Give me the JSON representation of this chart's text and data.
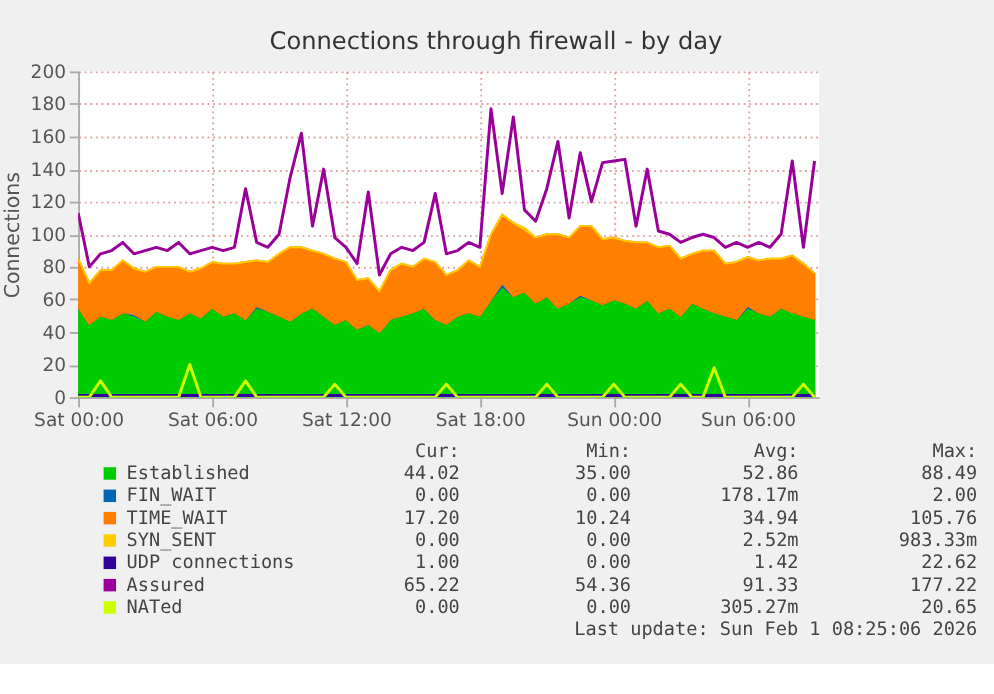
{
  "chart_data": {
    "type": "area",
    "title": "Connections through firewall - by day",
    "ylabel": "Connections",
    "stacked": true,
    "grid": true,
    "legend": "bottom",
    "marker": "none",
    "x": [
      "2026-01-31T00:00",
      "2026-01-31T00:30",
      "2026-01-31T01:00",
      "2026-01-31T01:30",
      "2026-01-31T02:00",
      "2026-01-31T02:30",
      "2026-01-31T03:00",
      "2026-01-31T03:30",
      "2026-01-31T04:00",
      "2026-01-31T04:30",
      "2026-01-31T05:00",
      "2026-01-31T05:30",
      "2026-01-31T06:00",
      "2026-01-31T06:30",
      "2026-01-31T07:00",
      "2026-01-31T07:30",
      "2026-01-31T08:00",
      "2026-01-31T08:30",
      "2026-01-31T09:00",
      "2026-01-31T09:30",
      "2026-01-31T10:00",
      "2026-01-31T10:30",
      "2026-01-31T11:00",
      "2026-01-31T11:30",
      "2026-01-31T12:00",
      "2026-01-31T12:30",
      "2026-01-31T13:00",
      "2026-01-31T13:30",
      "2026-01-31T14:00",
      "2026-01-31T14:30",
      "2026-01-31T15:00",
      "2026-01-31T15:30",
      "2026-01-31T16:00",
      "2026-01-31T16:30",
      "2026-01-31T17:00",
      "2026-01-31T17:30",
      "2026-01-31T18:00",
      "2026-01-31T18:30",
      "2026-01-31T19:00",
      "2026-01-31T19:30",
      "2026-01-31T20:00",
      "2026-01-31T20:30",
      "2026-01-31T21:00",
      "2026-01-31T21:30",
      "2026-01-31T22:00",
      "2026-01-31T22:30",
      "2026-01-31T23:00",
      "2026-01-31T23:30",
      "2026-02-01T00:00",
      "2026-02-01T00:30",
      "2026-02-01T01:00",
      "2026-02-01T01:30",
      "2026-02-01T02:00",
      "2026-02-01T02:30",
      "2026-02-01T03:00",
      "2026-02-01T03:30",
      "2026-02-01T04:00",
      "2026-02-01T04:30",
      "2026-02-01T05:00",
      "2026-02-01T05:30",
      "2026-02-01T06:00",
      "2026-02-01T06:30",
      "2026-02-01T07:00",
      "2026-02-01T07:30",
      "2026-02-01T08:00",
      "2026-02-01T08:30",
      "2026-02-01T09:00"
    ],
    "xlim": [
      "2026-01-31T00:00",
      "2026-02-01T09:12"
    ],
    "xticks": [
      {
        "value": "2026-01-31T00:00",
        "label": "Sat 00:00"
      },
      {
        "value": "2026-01-31T06:00",
        "label": "Sat 06:00"
      },
      {
        "value": "2026-01-31T12:00",
        "label": "Sat 12:00"
      },
      {
        "value": "2026-01-31T18:00",
        "label": "Sat 18:00"
      },
      {
        "value": "2026-02-01T00:00",
        "label": "Sun 00:00"
      },
      {
        "value": "2026-02-01T06:00",
        "label": "Sun 06:00"
      }
    ],
    "ylim": [
      0,
      200
    ],
    "yticks": [
      0,
      20,
      40,
      60,
      80,
      100,
      120,
      140,
      160,
      180,
      200
    ],
    "series": [
      {
        "name": "Established",
        "color": "#00cc00",
        "values": [
          55,
          45,
          50,
          48,
          52,
          50,
          47,
          53,
          50,
          48,
          52,
          49,
          55,
          50,
          52,
          48,
          55,
          53,
          50,
          47,
          52,
          55,
          50,
          45,
          48,
          42,
          45,
          40,
          48,
          50,
          52,
          55,
          48,
          45,
          50,
          52,
          50,
          60,
          68,
          62,
          65,
          58,
          62,
          55,
          58,
          62,
          60,
          57,
          60,
          58,
          55,
          60,
          52,
          55,
          50,
          58,
          55,
          52,
          50,
          48,
          55,
          52,
          50,
          55,
          52,
          50,
          48
        ]
      },
      {
        "name": "FIN_WAIT",
        "color": "#0066b3",
        "values": [
          0,
          0,
          0,
          0,
          0,
          1,
          0,
          0,
          0,
          0,
          0,
          0,
          0,
          0,
          0,
          0,
          1,
          0,
          0,
          0,
          0,
          0,
          0,
          0,
          0,
          0,
          0,
          0,
          0,
          0,
          0,
          0,
          0,
          0,
          0,
          0,
          0,
          0,
          2,
          0,
          0,
          0,
          0,
          0,
          0,
          1,
          0,
          0,
          0,
          0,
          0,
          0,
          0,
          0,
          0,
          0,
          0,
          0,
          0,
          0,
          1,
          0,
          0,
          0,
          0,
          0,
          0
        ]
      },
      {
        "name": "TIME_WAIT",
        "color": "#ff8000",
        "values": [
          30,
          25,
          28,
          30,
          32,
          28,
          30,
          27,
          30,
          32,
          25,
          30,
          28,
          32,
          30,
          35,
          28,
          30,
          38,
          45,
          40,
          35,
          38,
          40,
          35,
          30,
          28,
          25,
          30,
          32,
          28,
          30,
          35,
          30,
          28,
          32,
          30,
          40,
          42,
          45,
          38,
          40,
          38,
          45,
          40,
          42,
          45,
          40,
          38,
          38,
          40,
          35,
          40,
          38,
          35,
          30,
          35,
          38,
          32,
          35,
          30,
          32,
          35,
          30,
          35,
          32,
          28
        ]
      },
      {
        "name": "SYN_SENT",
        "color": "#ffcc00",
        "values": [
          0,
          0,
          0,
          0,
          0,
          0,
          0,
          0,
          0,
          0,
          0,
          0,
          0,
          0,
          0,
          0,
          0,
          0,
          0,
          0,
          0,
          0,
          0,
          0,
          0,
          0,
          0,
          0,
          0,
          0,
          0,
          0,
          0,
          0,
          0,
          0,
          0,
          0,
          0,
          0,
          1,
          0,
          0,
          0,
          0,
          0,
          0,
          0,
          0,
          0,
          0,
          0,
          0,
          0,
          0,
          0,
          0,
          0,
          0,
          0,
          0,
          0,
          0,
          0,
          0,
          0,
          0
        ]
      },
      {
        "name": "UDP connections",
        "type": "line",
        "color": "#330099",
        "values": [
          1,
          1,
          1,
          1,
          1,
          1,
          1,
          1,
          1,
          1,
          1,
          1,
          1,
          1,
          1,
          1,
          1,
          1,
          1,
          1,
          1,
          1,
          1,
          1,
          1,
          1,
          1,
          1,
          1,
          1,
          1,
          1,
          1,
          1,
          1,
          1,
          1,
          1,
          1,
          1,
          1,
          1,
          1,
          1,
          1,
          1,
          1,
          1,
          1,
          1,
          1,
          1,
          1,
          1,
          1,
          1,
          1,
          1,
          1,
          1,
          1,
          1,
          1,
          1,
          1,
          1,
          1
        ]
      },
      {
        "name": "Assured",
        "type": "line",
        "color": "#990099",
        "values": [
          113,
          80,
          88,
          90,
          95,
          88,
          90,
          92,
          90,
          95,
          88,
          90,
          92,
          90,
          92,
          128,
          95,
          92,
          100,
          135,
          162,
          105,
          140,
          98,
          92,
          82,
          126,
          75,
          88,
          92,
          90,
          95,
          125,
          88,
          90,
          95,
          92,
          177,
          125,
          172,
          115,
          108,
          128,
          157,
          110,
          150,
          120,
          144,
          145,
          146,
          105,
          140,
          102,
          100,
          95,
          98,
          100,
          98,
          92,
          95,
          92,
          95,
          92,
          100,
          145,
          92,
          145
        ]
      },
      {
        "name": "NATed",
        "type": "line",
        "color": "#ccff00",
        "values": [
          0,
          0,
          10,
          0,
          0,
          0,
          0,
          0,
          0,
          0,
          20,
          0,
          0,
          0,
          0,
          10,
          0,
          0,
          0,
          0,
          0,
          0,
          0,
          8,
          0,
          0,
          0,
          0,
          0,
          0,
          0,
          0,
          0,
          8,
          0,
          0,
          0,
          0,
          0,
          0,
          0,
          0,
          8,
          0,
          0,
          0,
          0,
          0,
          8,
          0,
          0,
          0,
          0,
          0,
          8,
          0,
          0,
          18,
          0,
          0,
          0,
          0,
          0,
          0,
          0,
          8,
          0
        ]
      }
    ],
    "annotations": [
      "Cur:",
      "Min:",
      "Avg:",
      "Max:",
      "44.02",
      "35.00",
      "52.86",
      "88.49",
      "0.00",
      "0.00",
      "178.17m",
      "2.00",
      "17.20",
      "10.24",
      "34.94",
      "105.76",
      "0.00",
      "0.00",
      "2.52m",
      "983.33m",
      "1.00",
      "0.00",
      "1.42",
      "22.62",
      "65.22",
      "54.36",
      "91.33",
      "177.22",
      "0.00",
      "0.00",
      "305.27m",
      "20.65",
      "Last update: Sun Feb  1 08:25:06 2026"
    ]
  }
}
